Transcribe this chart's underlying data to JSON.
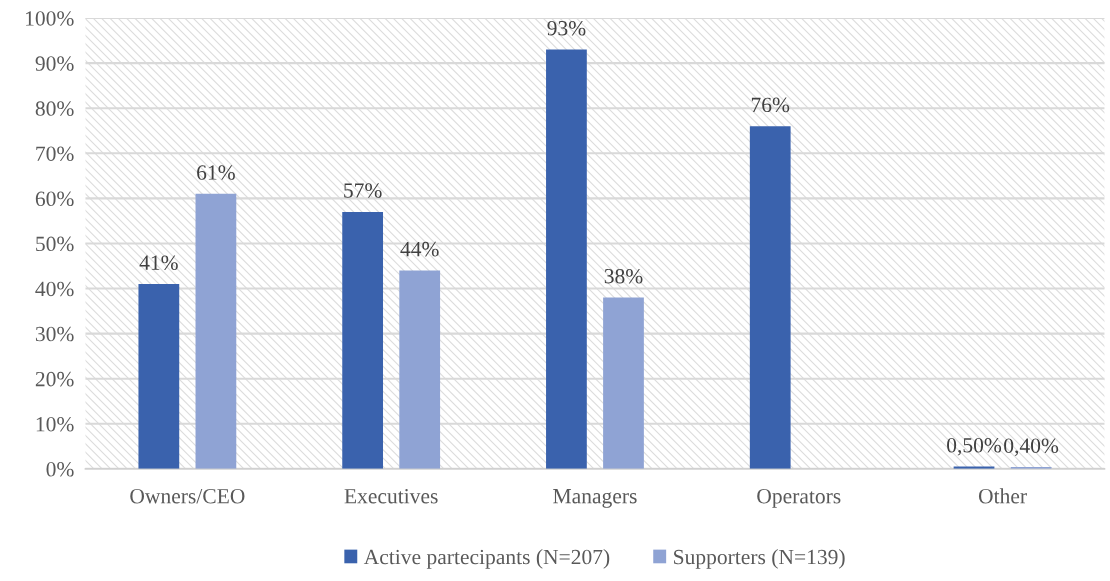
{
  "chart_data": {
    "type": "bar",
    "categories": [
      "Owners/CEO",
      "Executives",
      "Managers",
      "Operators",
      "Other"
    ],
    "series": [
      {
        "name": "Active partecipants (N=207)",
        "color": "#3a62ad",
        "values": [
          41,
          57,
          93,
          76,
          0.5
        ],
        "value_labels": [
          "41%",
          "57%",
          "93%",
          "76%",
          "0,50%"
        ]
      },
      {
        "name": "Supporters (N=139)",
        "color": "#8fa3d4",
        "values": [
          61,
          44,
          38,
          null,
          0.4
        ],
        "value_labels": [
          "61%",
          "44%",
          "38%",
          null,
          "0,40%"
        ]
      }
    ],
    "ylim": [
      0,
      100
    ],
    "yticks": [
      {
        "value": 0,
        "label": "0%"
      },
      {
        "value": 10,
        "label": "10%"
      },
      {
        "value": 20,
        "label": "20%"
      },
      {
        "value": 30,
        "label": "30%"
      },
      {
        "value": 40,
        "label": "40%"
      },
      {
        "value": 50,
        "label": "50%"
      },
      {
        "value": 60,
        "label": "60%"
      },
      {
        "value": 70,
        "label": "70%"
      },
      {
        "value": 80,
        "label": "80%"
      },
      {
        "value": 90,
        "label": "90%"
      },
      {
        "value": 100,
        "label": "100%"
      }
    ],
    "grid": "y",
    "legend": "bottom"
  }
}
